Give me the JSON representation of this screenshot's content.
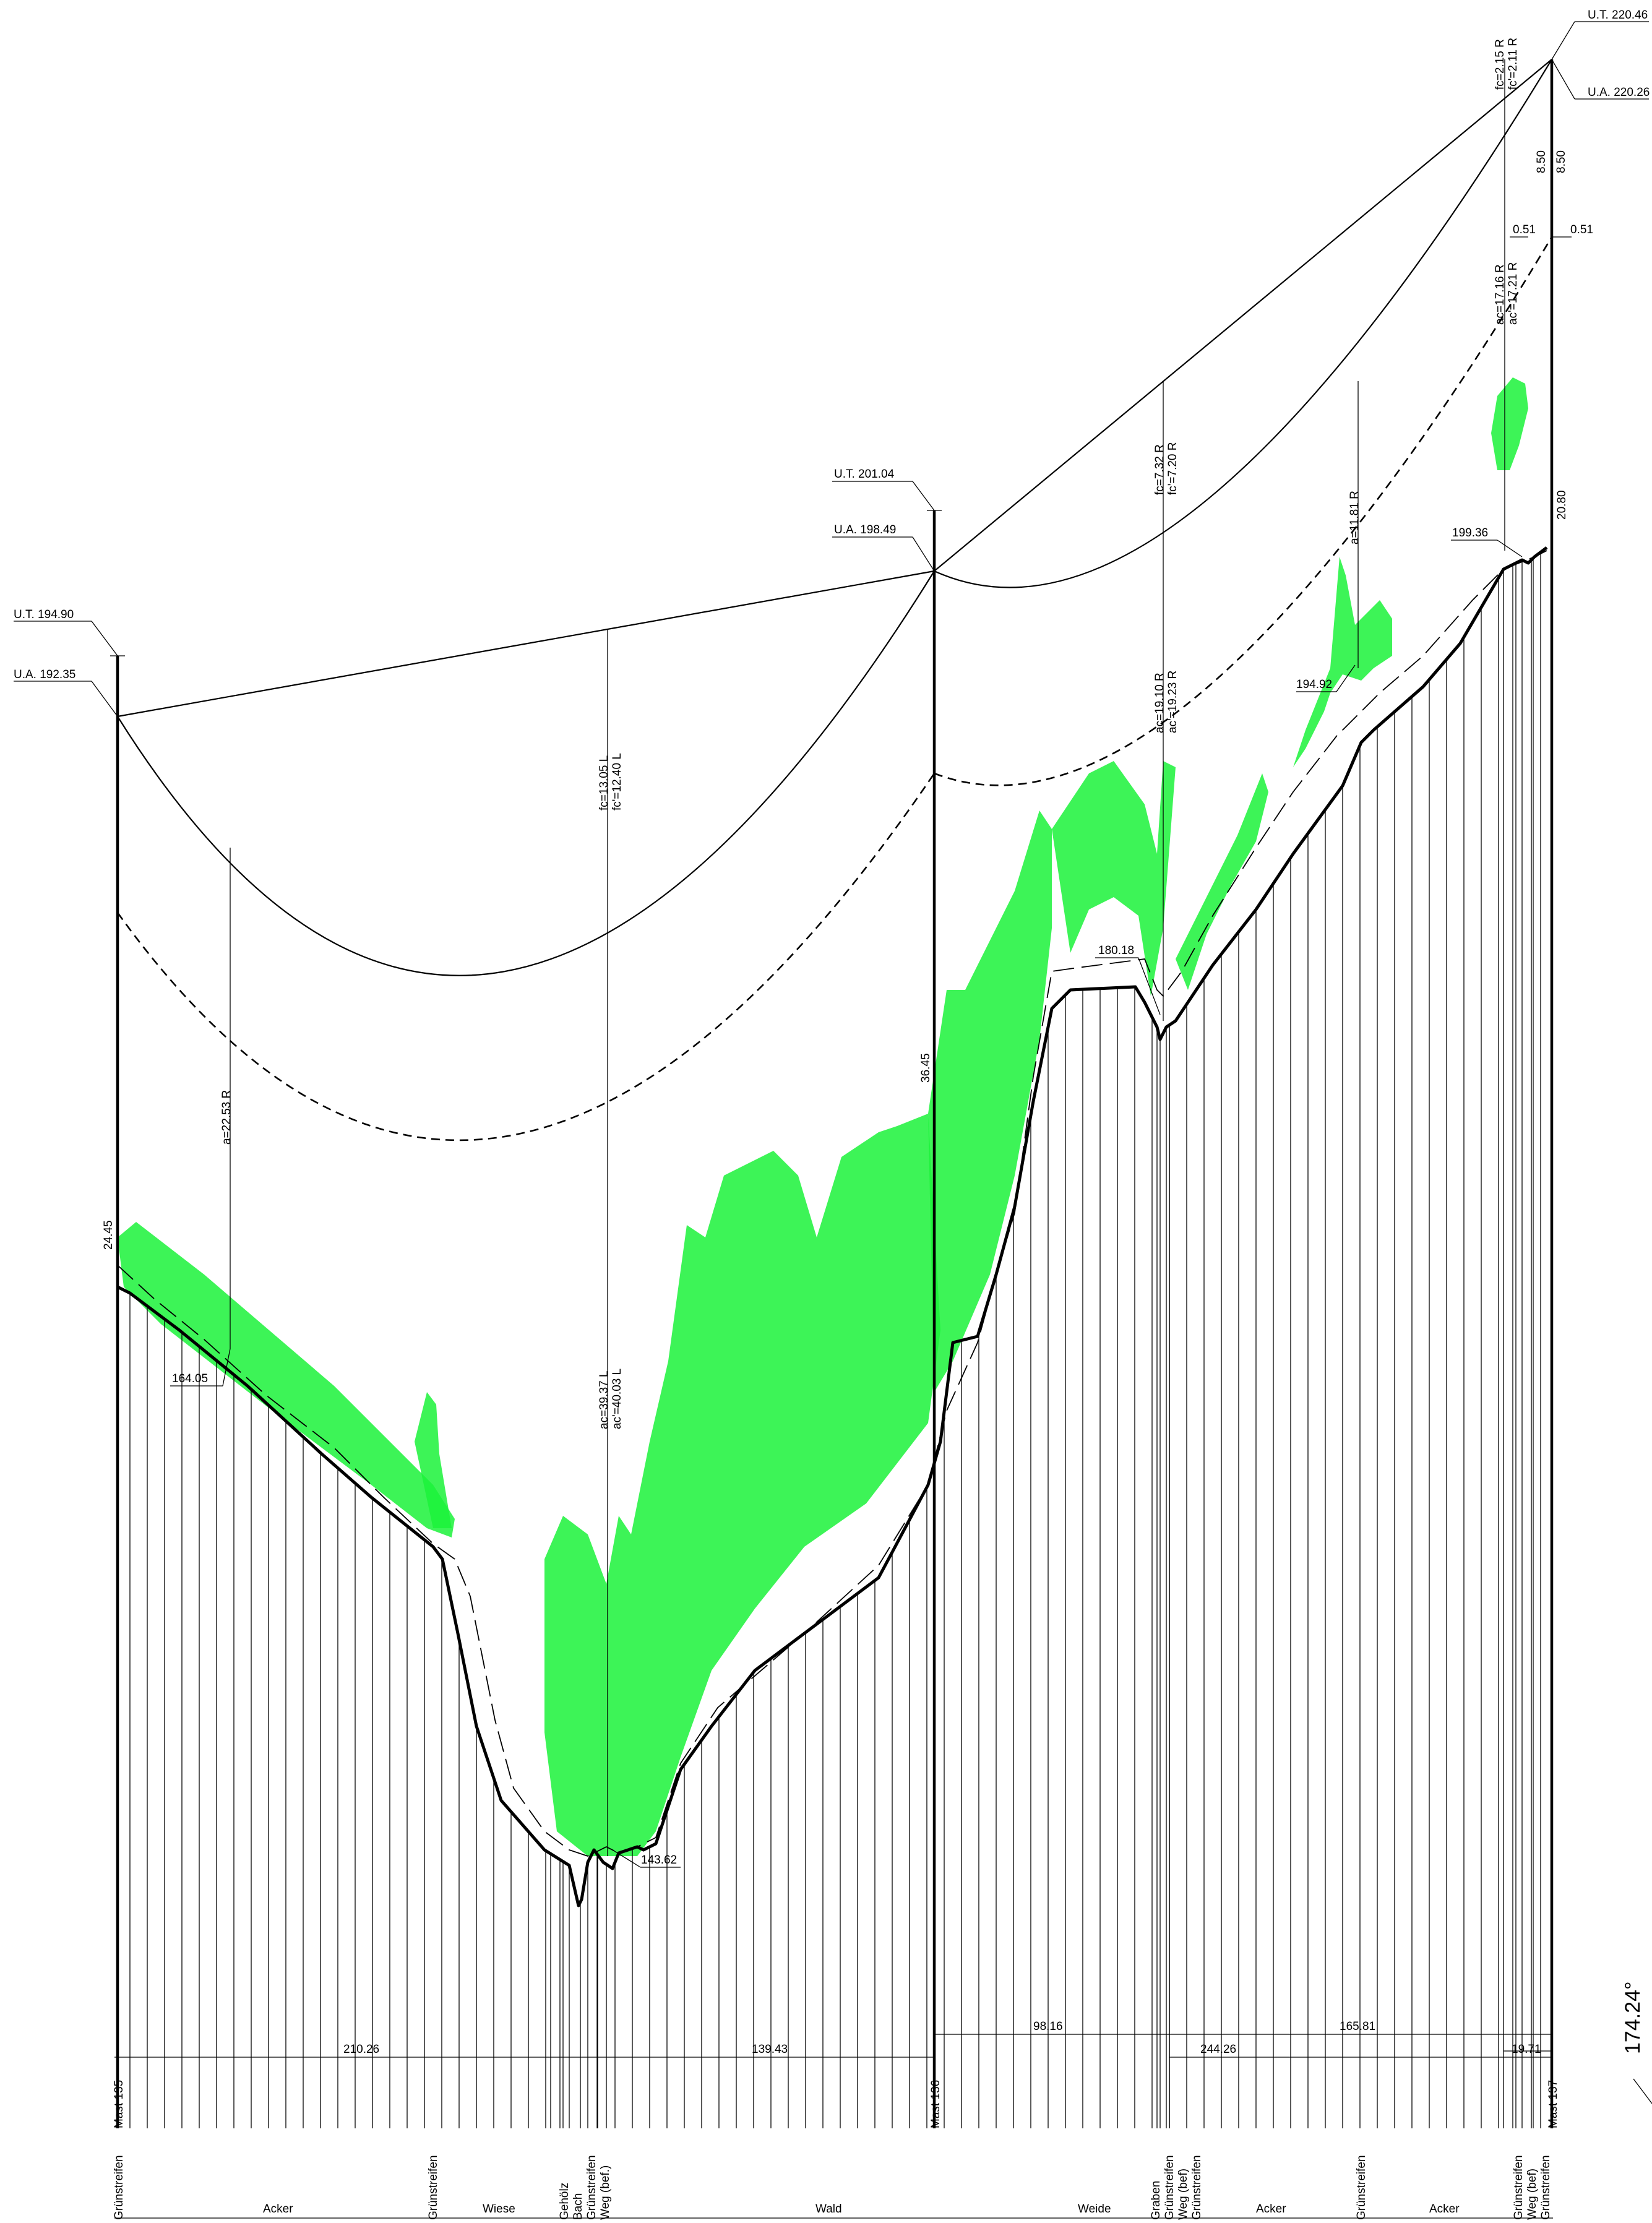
{
  "masts": [
    {
      "name": "Mast 135",
      "ut_label": "U.T. 194.90",
      "ua_label": "U.A. 192.35",
      "height_label": "24.45"
    },
    {
      "name": "Mast 136",
      "ut_label": "U.T. 201.04",
      "ua_label": "U.A. 198.49",
      "height_label": "36.45"
    },
    {
      "name": "Mast 137",
      "ut_label": "U.T. 220.46",
      "ua_label": "U.A. 220.26",
      "height_label": "20.80"
    }
  ],
  "span_labels": {
    "fc1": "fc=13.05 L",
    "fc1b": "fc'=12.40 L",
    "a1": "a=22.53 R",
    "ac1": "ac=39.37 L",
    "ac1b": "ac'=40.03 L",
    "fc2": "fc=7.32 R",
    "fc2b": "fc'=7.20 R",
    "ac2": "ac=19.10 R",
    "ac2b": "ac'=19.23 R",
    "a2": "a=11.81 R",
    "fc3": "fc=2.15 R",
    "fc3b": "fc'=2.11 R",
    "ac3": "ac=17.16 R",
    "ac3b": "ac'=17.21 R",
    "h1": "8.50",
    "h2": "8.50",
    "o1": "0.51",
    "o2": "0.51"
  },
  "elevations": [
    "164.05",
    "143.62",
    "180.18",
    "194.92",
    "199.36"
  ],
  "distances": [
    "210.26",
    "139.43",
    "98.16",
    "244.26",
    "165.81",
    "19.71"
  ],
  "land_use": [
    "Acker",
    "Wiese",
    "Wald",
    "Weide",
    "Acker",
    "Acker"
  ],
  "features": {
    "gruen": "Grünstreifen",
    "gehoelz": "Gehölz",
    "bach": "Bach",
    "weg": "Weg (bef.)",
    "graben": "Graben",
    "weg2": "Weg (bef)"
  },
  "angle": "174.24°",
  "colors": {
    "vegetation": "#1bf23a",
    "line": "#000000"
  }
}
